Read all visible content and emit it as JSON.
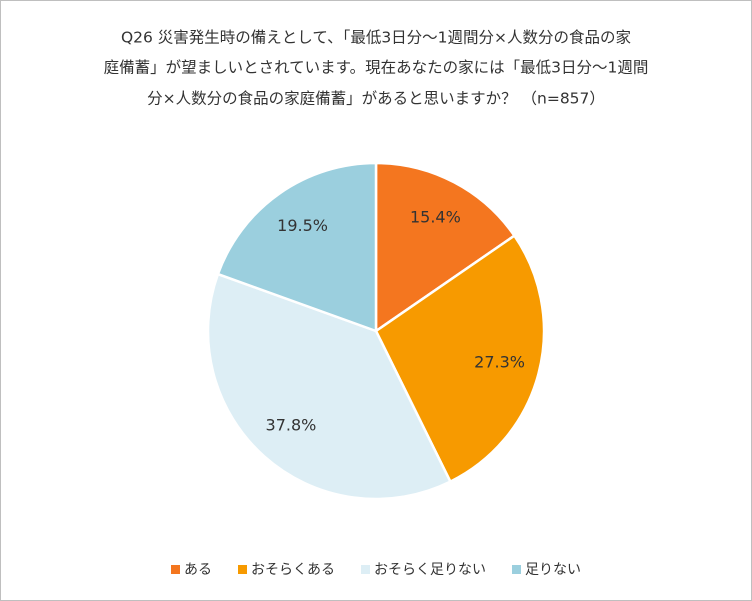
{
  "chart_data": {
    "type": "pie",
    "title": [
      "Q26 災害発生時の備えとして、「最低3日分～1週間分×人数分の食品の家",
      "庭備蓄」が望ましいとされています。現在あなたの家には「最低3日分～1週間",
      "分×人数分の食品の家庭備蓄」があると思いますか？ （n=857）"
    ],
    "categories": [
      "ある",
      "おそらくある",
      "おそらく足りない",
      "足りない"
    ],
    "values": [
      15.4,
      27.3,
      37.8,
      19.5
    ],
    "value_labels": [
      "15.4%",
      "27.3%",
      "37.8%",
      "19.5%"
    ],
    "colors": [
      "#f4761f",
      "#f79a00",
      "#ddeef5",
      "#9bcfde"
    ],
    "legend": "bottom"
  }
}
